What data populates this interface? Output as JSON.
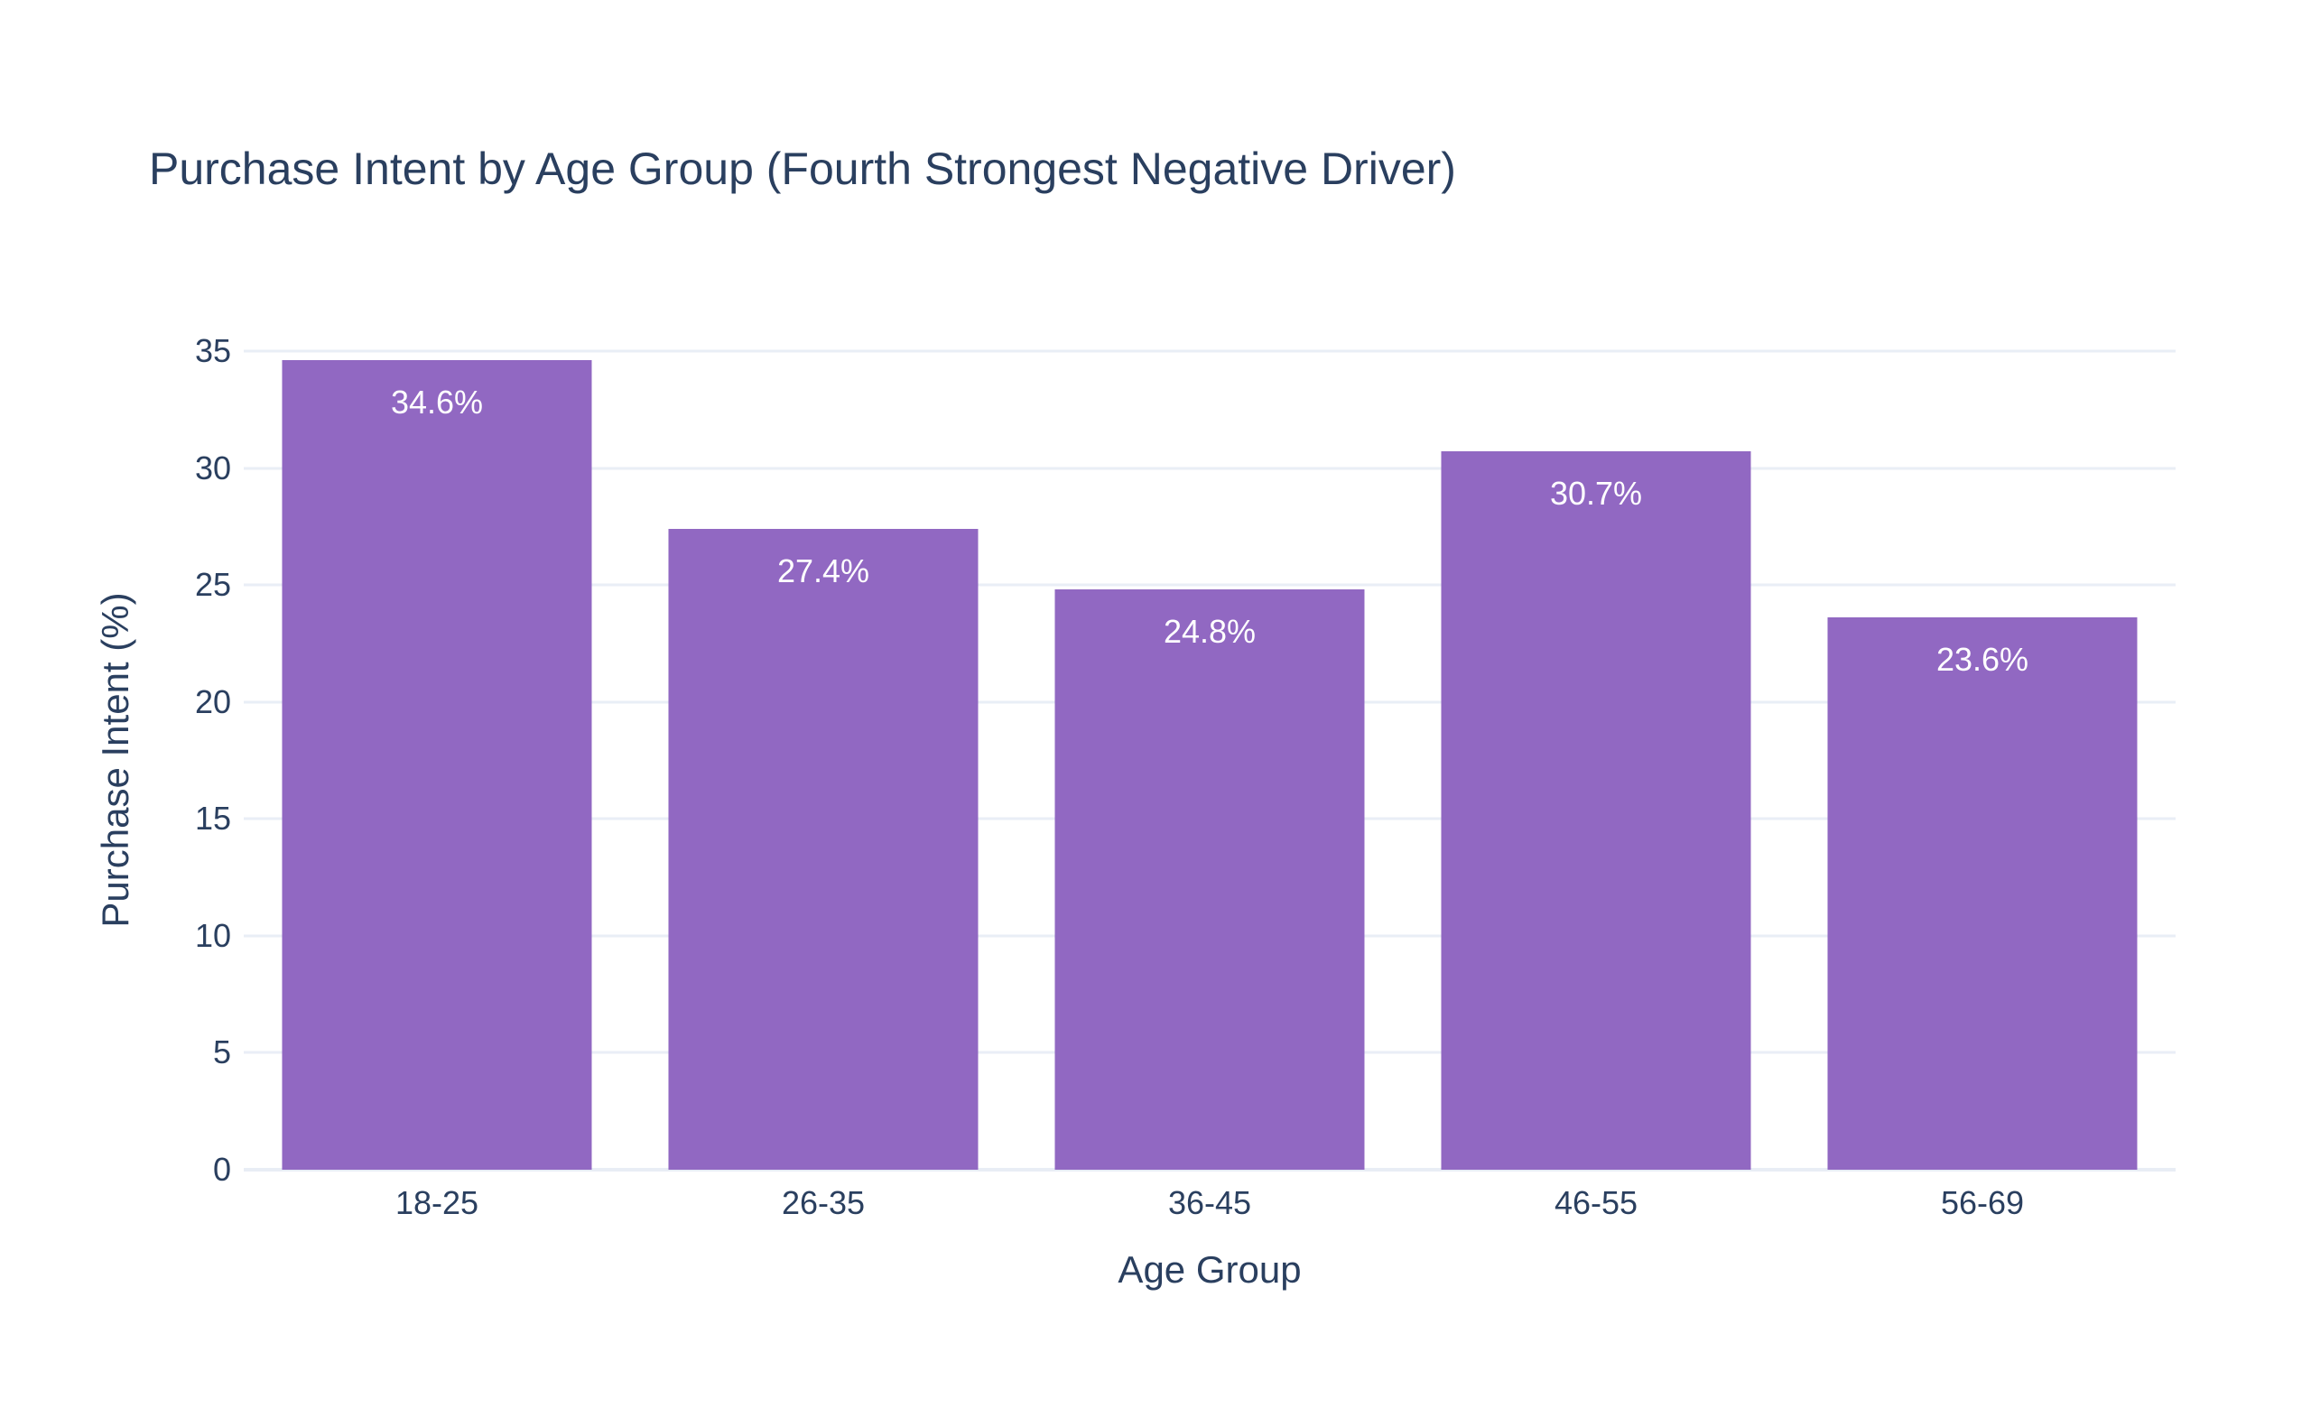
{
  "chart_data": {
    "type": "bar",
    "title": "Purchase Intent by Age Group (Fourth Strongest Negative Driver)",
    "xlabel": "Age Group",
    "ylabel": "Purchase Intent (%)",
    "categories": [
      "18-25",
      "26-35",
      "36-45",
      "46-55",
      "56-69"
    ],
    "values": [
      34.6,
      27.4,
      24.8,
      30.7,
      23.6
    ],
    "bar_labels": [
      "34.6%",
      "27.4%",
      "24.8%",
      "30.7%",
      "23.6%"
    ],
    "ylim": [
      0,
      35
    ],
    "yticks": [
      0,
      5,
      10,
      15,
      20,
      25,
      30,
      35
    ],
    "grid": true,
    "legend": "none",
    "colors": {
      "bar": "#9168c2",
      "bar_label_text": "#ffffff",
      "text": "#2a3f5f",
      "gridline": "#e9eef6",
      "zeroline": "#e8edf5",
      "background": "#ffffff"
    }
  }
}
